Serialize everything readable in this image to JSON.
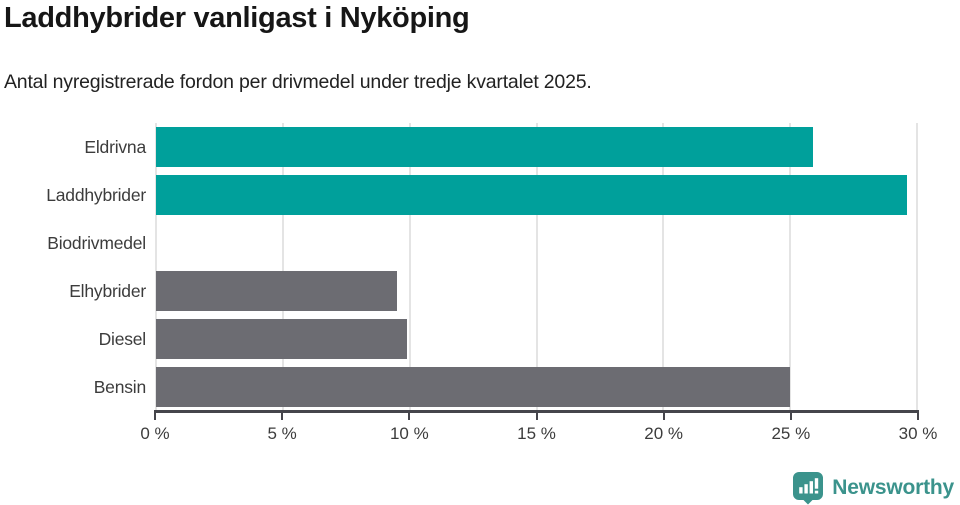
{
  "header": {
    "title": "Laddhybrider vanligast i Nyköping",
    "subtitle": "Antal nyregistrerade fordon per drivmedel under tredje kvartalet 2025."
  },
  "chart_data": {
    "type": "bar",
    "orientation": "horizontal",
    "title": "Laddhybrider vanligast i Nyköping",
    "subtitle": "Antal nyregistrerade fordon per drivmedel under tredje kvartalet 2025.",
    "categories": [
      "Eldrivna",
      "Laddhybrider",
      "Biodrivmedel",
      "Elhybrider",
      "Diesel",
      "Bensin"
    ],
    "values": [
      25.9,
      29.6,
      0,
      9.5,
      9.9,
      25.0
    ],
    "unit": "%",
    "bar_colors": [
      "#00a09b",
      "#00a09b",
      "#6c6c72",
      "#6c6c72",
      "#6c6c72",
      "#6c6c72"
    ],
    "xlim": [
      0,
      30
    ],
    "x_ticks": [
      0,
      5,
      10,
      15,
      20,
      25,
      30
    ],
    "x_tick_labels": [
      "0 %",
      "5 %",
      "10 %",
      "15 %",
      "20 %",
      "25 %",
      "30 %"
    ],
    "grid": "vertical-gridlines-on",
    "legend": "none",
    "xlabel": "",
    "ylabel": ""
  },
  "footer": {
    "brand": "Newsworthy"
  },
  "colors": {
    "accent_teal": "#00a09b",
    "neutral_gray": "#6c6c72",
    "logo_teal": "#3b938c",
    "gridline": "#e4e4e4",
    "axis": "#45454b",
    "text_dark": "#161616",
    "text_body": "#3c3c3c"
  }
}
